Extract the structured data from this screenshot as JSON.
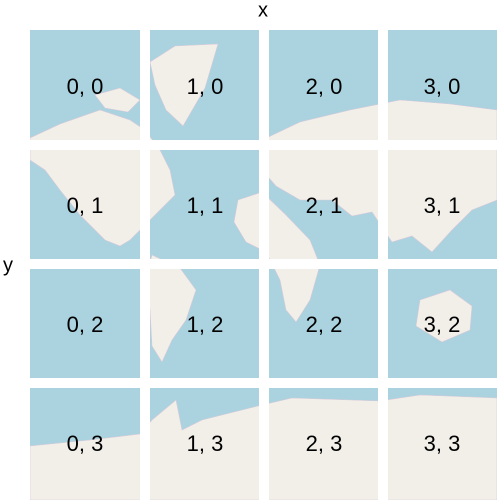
{
  "axis_labels": {
    "x": "x",
    "y": "y"
  },
  "tiles": [
    [
      "0, 0",
      "1, 0",
      "2, 0",
      "3, 0"
    ],
    [
      "0, 1",
      "1, 1",
      "2, 1",
      "3, 1"
    ],
    [
      "0, 2",
      "1, 2",
      "2, 2",
      "3, 2"
    ],
    [
      "0, 3",
      "1, 3",
      "2, 3",
      "3, 3"
    ]
  ]
}
